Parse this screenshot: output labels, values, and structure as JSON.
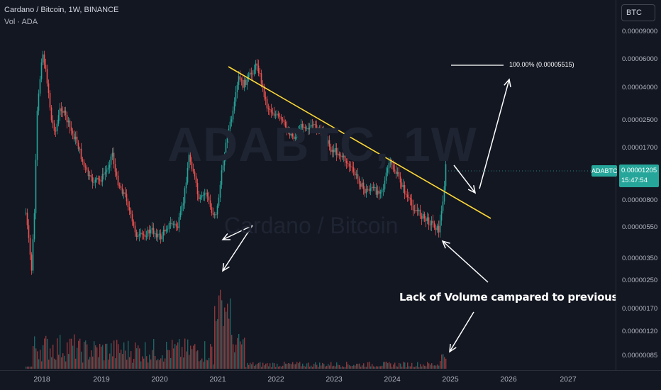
{
  "header": {
    "title": "Cardano / Bitcoin, 1W, BINANCE",
    "volume_label": "Vol · ADA"
  },
  "watermark": {
    "symbol": "ADABTC, 1W",
    "name": "Cardano / Bitcoin"
  },
  "annotations": {
    "volume_note": "Lack of Volume campared to previous Run",
    "projection_label": "100.00% (0.00005515)"
  },
  "price_axis": {
    "currency_button": "BTC",
    "labels": [
      "0.00009000",
      "0.00006000",
      "0.00004000",
      "0.00002500",
      "0.00001700",
      "0.00000800",
      "0.00000550",
      "0.00000350",
      "0.00000250",
      "0.00000170",
      "0.00000120",
      "0.00000085"
    ],
    "current_price": "0.00001205",
    "countdown": "15:47:54",
    "symbol_tag": "ADABTC"
  },
  "time_axis": {
    "labels": [
      "2018",
      "2019",
      "2020",
      "2021",
      "2022",
      "2023",
      "2024",
      "2025",
      "2026",
      "2027"
    ]
  },
  "colors": {
    "up": "#26a69a",
    "down": "#ef5350",
    "trendline": "#fdd835",
    "annotation": "#ffffff",
    "background": "#131722"
  }
}
